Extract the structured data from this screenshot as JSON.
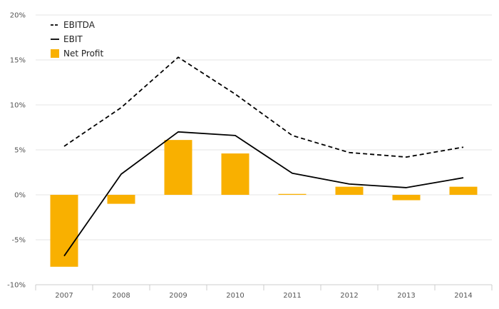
{
  "chart_data": {
    "type": "bar",
    "categories": [
      "2007",
      "2008",
      "2009",
      "2010",
      "2011",
      "2012",
      "2013",
      "2014"
    ],
    "series": [
      {
        "name": "EBITDA",
        "kind": "line",
        "style": "dashed",
        "color": "#000000",
        "values": [
          5.4,
          9.7,
          15.3,
          11.2,
          6.6,
          4.7,
          4.2,
          5.3
        ]
      },
      {
        "name": "EBIT",
        "kind": "line",
        "style": "solid",
        "color": "#000000",
        "values": [
          -6.8,
          2.3,
          7.0,
          6.6,
          2.4,
          1.2,
          0.8,
          1.9
        ]
      },
      {
        "name": "Net Profit",
        "kind": "bar",
        "color": "#f9b000",
        "values": [
          -8.0,
          -1.0,
          6.1,
          4.6,
          0.1,
          0.9,
          -0.6,
          0.9
        ]
      }
    ],
    "ylim": [
      -10,
      20
    ],
    "yticks": [
      "-10%",
      "-5%",
      "0%",
      "5%",
      "10%",
      "15%",
      "20%"
    ],
    "ytick_values": [
      -10,
      -5,
      0,
      5,
      10,
      15,
      20
    ],
    "legend_position": "top-left",
    "grid": true
  }
}
